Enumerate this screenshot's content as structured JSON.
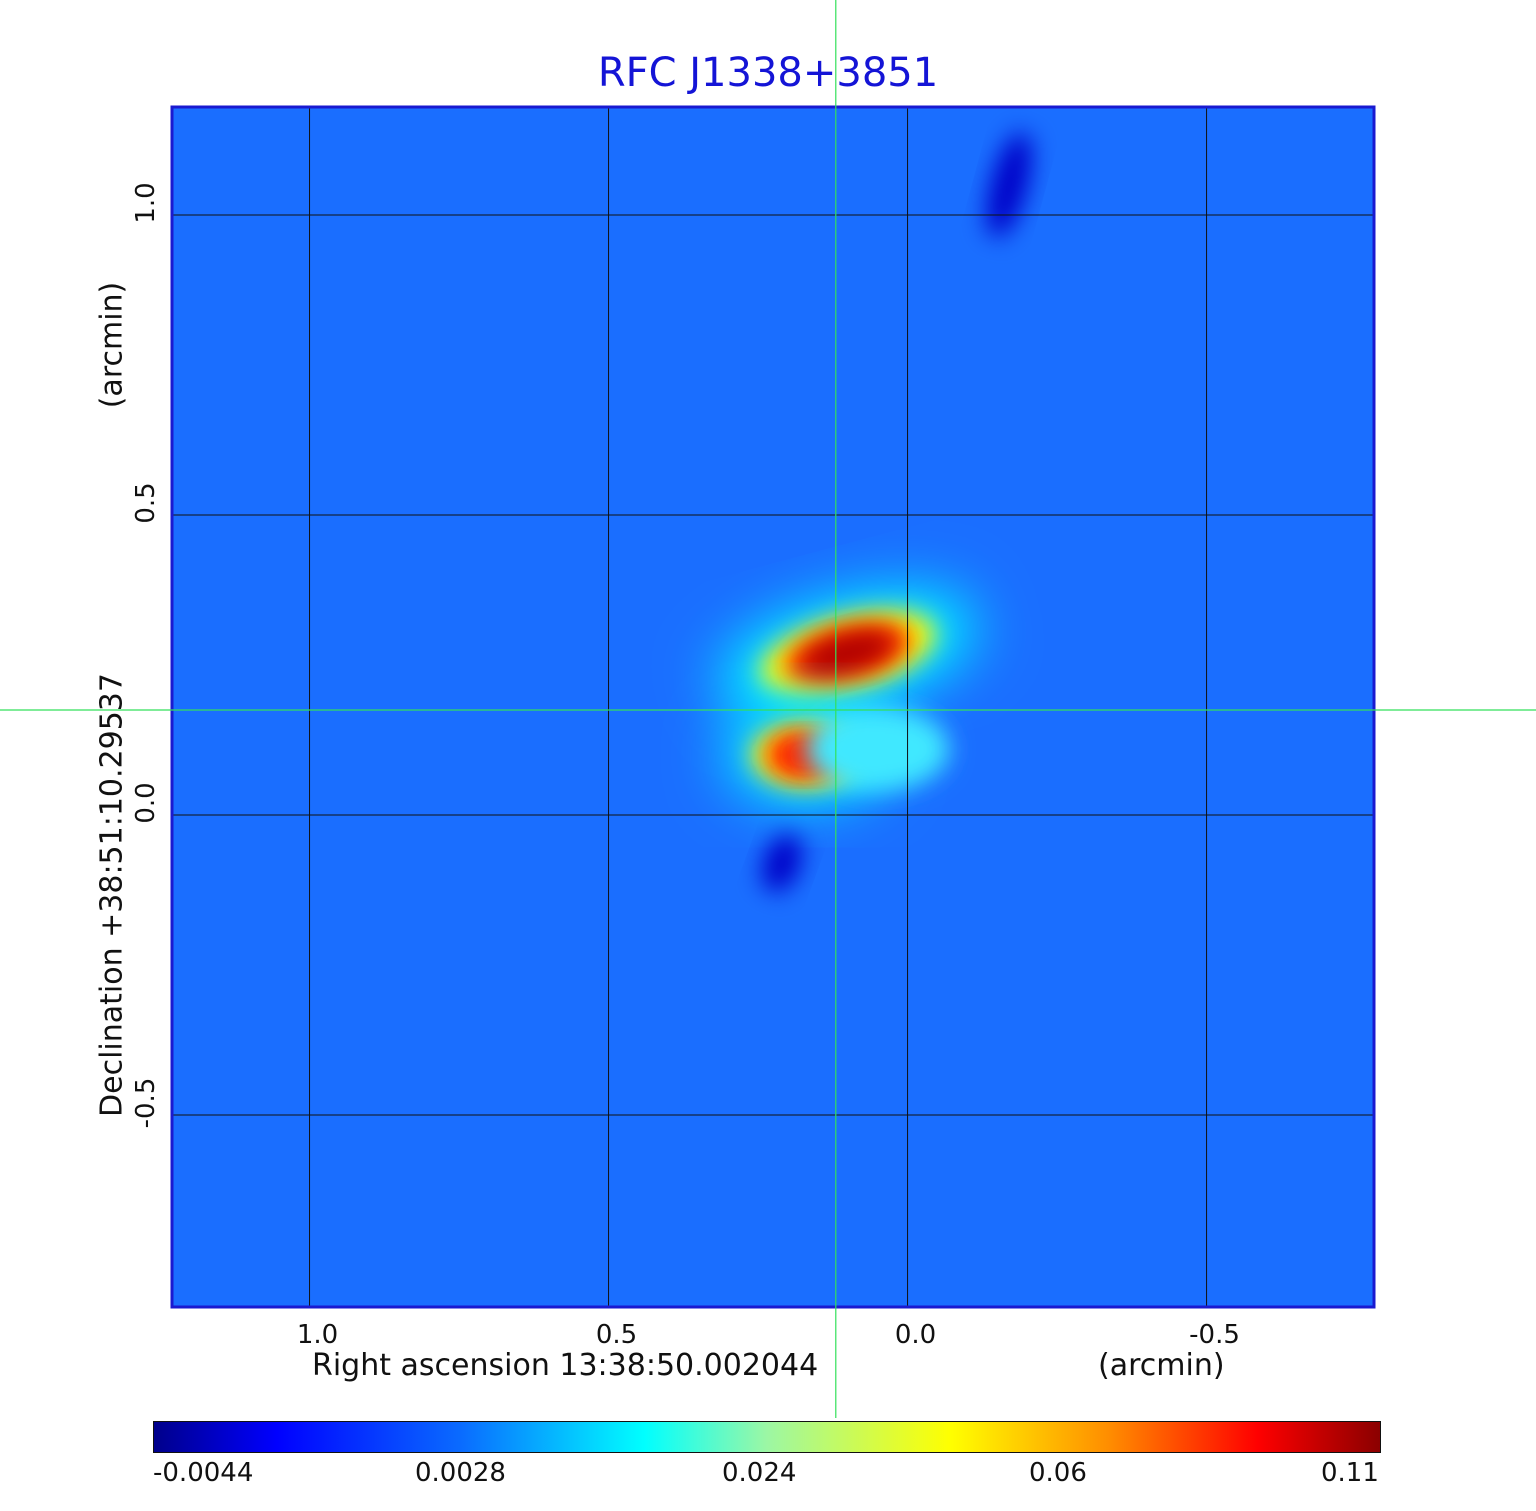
{
  "chart_data": {
    "type": "heatmap",
    "title": "RFC J1338+3851",
    "xlabel": "Right ascension  13:38:50.002044",
    "xunit": "(arcmin)",
    "ylabel": "Declination  +38:51:10.29537",
    "yunit": "(arcmin)",
    "xlim": [
      1.23,
      -0.78
    ],
    "ylim": [
      -0.82,
      1.18
    ],
    "xticks": [
      "1.0",
      "0.5",
      "0.0",
      "-0.5"
    ],
    "xtick_values": [
      1.0,
      0.5,
      0.0,
      -0.5
    ],
    "yticks": [
      "1.0",
      "0.5",
      "0.0",
      "-0.5"
    ],
    "ytick_values": [
      1.0,
      0.5,
      0.0,
      -0.5
    ],
    "grid": true,
    "crosshair": {
      "x": 0.12,
      "y": 0.175
    },
    "colorbar": {
      "tick_labels": [
        "-0.0044",
        "0.0028",
        "0.024",
        "0.06",
        "0.11"
      ],
      "min": -0.0044,
      "max": 0.11
    },
    "features": [
      {
        "x": 0.1,
        "y": 0.27,
        "value": 0.11,
        "sx": 0.1,
        "sy": 0.04,
        "angle": -15
      },
      {
        "x": 0.17,
        "y": 0.1,
        "value": 0.09,
        "sx": 0.06,
        "sy": 0.035,
        "angle": 0
      },
      {
        "x": 0.05,
        "y": 0.11,
        "value": 0.02,
        "sx": 0.12,
        "sy": 0.07,
        "angle": 0
      },
      {
        "x": 0.21,
        "y": -0.08,
        "value": -0.0044,
        "sx": 0.03,
        "sy": 0.05,
        "angle": 20
      },
      {
        "x": -0.17,
        "y": 1.05,
        "value": -0.003,
        "sx": 0.03,
        "sy": 0.09,
        "angle": 15
      }
    ]
  }
}
